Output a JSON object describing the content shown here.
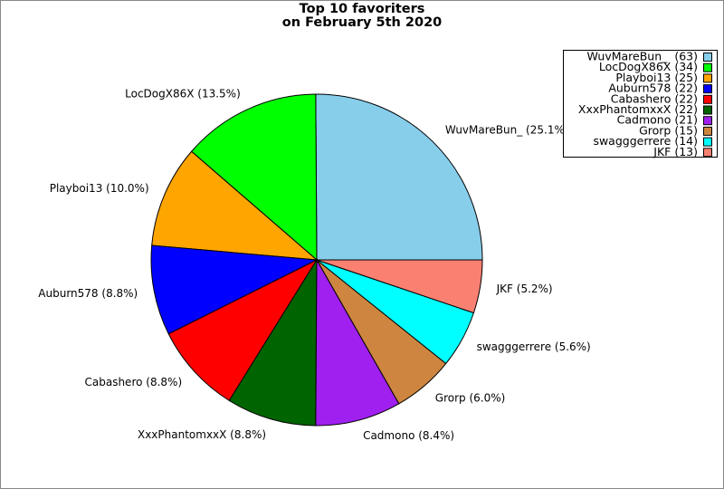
{
  "chart_data": {
    "type": "pie",
    "title": [
      "Top 10 favoriters",
      "on February 5th 2020"
    ],
    "values": [
      63,
      34,
      25,
      22,
      22,
      22,
      21,
      15,
      14,
      13
    ],
    "slice_labels": [
      "WuvMareBun_ (25.1%)",
      "LocDogX86X (13.5%)",
      "Playboi13 (10.0%)",
      "Auburn578 (8.8%)",
      "Cabashero (8.8%)",
      "XxxPhantomxxX (8.8%)",
      "Cadmono (8.4%)",
      "Grorp (6.0%)",
      "swagggerrere (5.6%)",
      "JKF (5.2%)"
    ],
    "legend_labels": [
      "WuvMareBun_  (63)",
      "LocDogX86X (34)",
      "Playboi13 (25)",
      "Auburn578 (22)",
      "Cabashero (22)",
      "XxxPhantomxxX (22)",
      "Cadmono (21)",
      "Grorp (15)",
      "swagggerrere (14)",
      "JKF (13)"
    ],
    "colors": [
      "#87ceeb",
      "#00ff00",
      "#ffa500",
      "#0000ff",
      "#ff0000",
      "#006400",
      "#a020f0",
      "#cd853f",
      "#00ffff",
      "#fa8072"
    ],
    "legend": "upper right"
  }
}
